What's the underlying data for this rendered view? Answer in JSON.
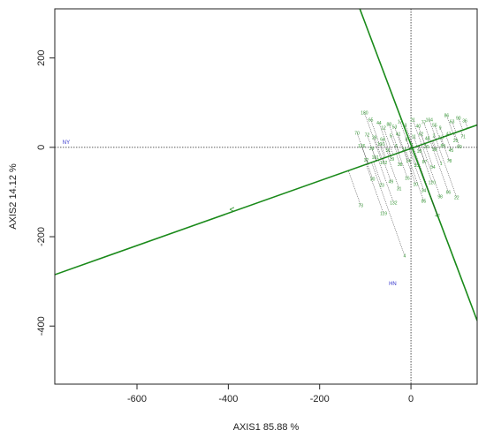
{
  "chart_data": {
    "type": "scatter",
    "xlabel": "AXIS1 85.88 %",
    "ylabel": "AXIS2 14.12 %",
    "xlim": [
      -780,
      145
    ],
    "ylim": [
      -530,
      310
    ],
    "xticks": [
      -600,
      -400,
      -200,
      0
    ],
    "yticks": [
      -400,
      -200,
      0,
      200
    ],
    "grid": false,
    "colors": {
      "axis_lines": "#1a8a1a",
      "points": "#3a9a3a",
      "connectors": "#222222",
      "environments": "#3333cc",
      "markers": "#1a8a1a"
    },
    "reference_lines": [
      {
        "name": "line-a",
        "points": [
          [
            -780,
            -285
          ],
          [
            145,
            50
          ]
        ]
      },
      {
        "name": "line-b",
        "points": [
          [
            -112,
            310
          ],
          [
            145,
            -388
          ]
        ]
      }
    ],
    "environments": [
      {
        "label": "NY",
        "x": -755,
        "y": 12
      },
      {
        "label": "HN",
        "x": -40,
        "y": -305
      }
    ],
    "markers": [
      {
        "label": "<",
        "x": -392,
        "y": -140
      }
    ],
    "points": [
      {
        "label": "180",
        "x": -102,
        "y": 78
      },
      {
        "label": "65",
        "x": -88,
        "y": 62
      },
      {
        "label": "44",
        "x": -70,
        "y": 55
      },
      {
        "label": "12",
        "x": -60,
        "y": 44
      },
      {
        "label": "88",
        "x": -48,
        "y": 52
      },
      {
        "label": "53",
        "x": -36,
        "y": 46
      },
      {
        "label": "17",
        "x": -24,
        "y": 58
      },
      {
        "label": "3",
        "x": -12,
        "y": 50
      },
      {
        "label": "21",
        "x": 4,
        "y": 62
      },
      {
        "label": "40",
        "x": 16,
        "y": 48
      },
      {
        "label": "77",
        "x": 28,
        "y": 56
      },
      {
        "label": "104",
        "x": 40,
        "y": 62
      },
      {
        "label": "55",
        "x": 52,
        "y": 50
      },
      {
        "label": "9",
        "x": 64,
        "y": 44
      },
      {
        "label": "86",
        "x": 78,
        "y": 72
      },
      {
        "label": "63",
        "x": 90,
        "y": 58
      },
      {
        "label": "90",
        "x": 104,
        "y": 66
      },
      {
        "label": "36",
        "x": 118,
        "y": 60
      },
      {
        "label": "70",
        "x": -118,
        "y": 32
      },
      {
        "label": "72",
        "x": -96,
        "y": 28
      },
      {
        "label": "26",
        "x": -80,
        "y": 22
      },
      {
        "label": "64",
        "x": -62,
        "y": 18
      },
      {
        "label": "5",
        "x": -44,
        "y": 26
      },
      {
        "label": "41",
        "x": -28,
        "y": 30
      },
      {
        "label": "8",
        "x": -10,
        "y": 18
      },
      {
        "label": "11",
        "x": 6,
        "y": 24
      },
      {
        "label": "62",
        "x": 22,
        "y": 30
      },
      {
        "label": "48",
        "x": 36,
        "y": 20
      },
      {
        "label": "2",
        "x": 50,
        "y": 26
      },
      {
        "label": "13",
        "x": 66,
        "y": 22
      },
      {
        "label": "47",
        "x": 82,
        "y": 30
      },
      {
        "label": "25",
        "x": 98,
        "y": 16
      },
      {
        "label": "71",
        "x": 114,
        "y": 24
      },
      {
        "label": "126",
        "x": -108,
        "y": 4
      },
      {
        "label": "29",
        "x": -86,
        "y": -2
      },
      {
        "label": "100",
        "x": -66,
        "y": 8
      },
      {
        "label": "51",
        "x": -50,
        "y": -6
      },
      {
        "label": "6",
        "x": -32,
        "y": 4
      },
      {
        "label": "15",
        "x": -14,
        "y": -4
      },
      {
        "label": "7",
        "x": 2,
        "y": 6
      },
      {
        "label": "18",
        "x": 18,
        "y": -8
      },
      {
        "label": "20",
        "x": 34,
        "y": 2
      },
      {
        "label": "58",
        "x": 52,
        "y": -4
      },
      {
        "label": "89",
        "x": 70,
        "y": 4
      },
      {
        "label": "45",
        "x": 88,
        "y": -6
      },
      {
        "label": "60",
        "x": 106,
        "y": 2
      },
      {
        "label": "32",
        "x": -98,
        "y": -28
      },
      {
        "label": "101",
        "x": -78,
        "y": -22
      },
      {
        "label": "102",
        "x": -60,
        "y": -34
      },
      {
        "label": "19",
        "x": -42,
        "y": -26
      },
      {
        "label": "38",
        "x": -24,
        "y": -38
      },
      {
        "label": "14",
        "x": -6,
        "y": -30
      },
      {
        "label": "33",
        "x": 12,
        "y": -40
      },
      {
        "label": "87",
        "x": 30,
        "y": -32
      },
      {
        "label": "54",
        "x": 48,
        "y": -44
      },
      {
        "label": "1",
        "x": 66,
        "y": -36
      },
      {
        "label": "78",
        "x": 84,
        "y": -30
      },
      {
        "label": "30",
        "x": -84,
        "y": -70
      },
      {
        "label": "23",
        "x": -64,
        "y": -84
      },
      {
        "label": "49",
        "x": -44,
        "y": -76
      },
      {
        "label": "31",
        "x": -26,
        "y": -92
      },
      {
        "label": "16",
        "x": -8,
        "y": -68
      },
      {
        "label": "10",
        "x": 10,
        "y": -82
      },
      {
        "label": "34",
        "x": 28,
        "y": -96
      },
      {
        "label": "120",
        "x": 46,
        "y": -78
      },
      {
        "label": "98",
        "x": 64,
        "y": -110
      },
      {
        "label": "66",
        "x": 82,
        "y": -100
      },
      {
        "label": "22",
        "x": 100,
        "y": -112
      },
      {
        "label": "73",
        "x": -110,
        "y": -130
      },
      {
        "label": "119",
        "x": -60,
        "y": -148
      },
      {
        "label": "132",
        "x": -38,
        "y": -124
      },
      {
        "label": "85",
        "x": 28,
        "y": -120
      },
      {
        "label": "42",
        "x": 58,
        "y": -152
      },
      {
        "label": "4",
        "x": -14,
        "y": -242
      }
    ]
  }
}
